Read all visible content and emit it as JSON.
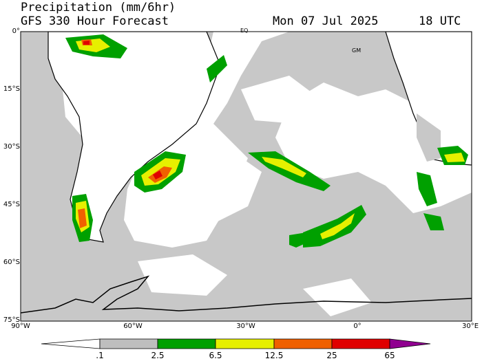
{
  "header": {
    "title_line1": "Precipitation (mm/6hr)",
    "title_line2": "GFS 330 Hour Forecast",
    "valid_date": "Mon 07 Jul 2025",
    "valid_time": "18 UTC"
  },
  "axes": {
    "lat_ticks": [
      "0°",
      "15°S",
      "30°S",
      "45°S",
      "60°S",
      "75°S"
    ],
    "lon_ticks": [
      "90°W",
      "60°W",
      "30°W",
      "0°",
      "30°E"
    ]
  },
  "map_labels": {
    "equator": "EQ",
    "greenwich": "GM"
  },
  "colorbar": {
    "levels": [
      ".1",
      "2.5",
      "6.5",
      "12.5",
      "25",
      "65"
    ],
    "colors": [
      "#ffffff",
      "#bebebe",
      "#00a000",
      "#e6f000",
      "#f06000",
      "#e00000",
      "#900090"
    ]
  }
}
